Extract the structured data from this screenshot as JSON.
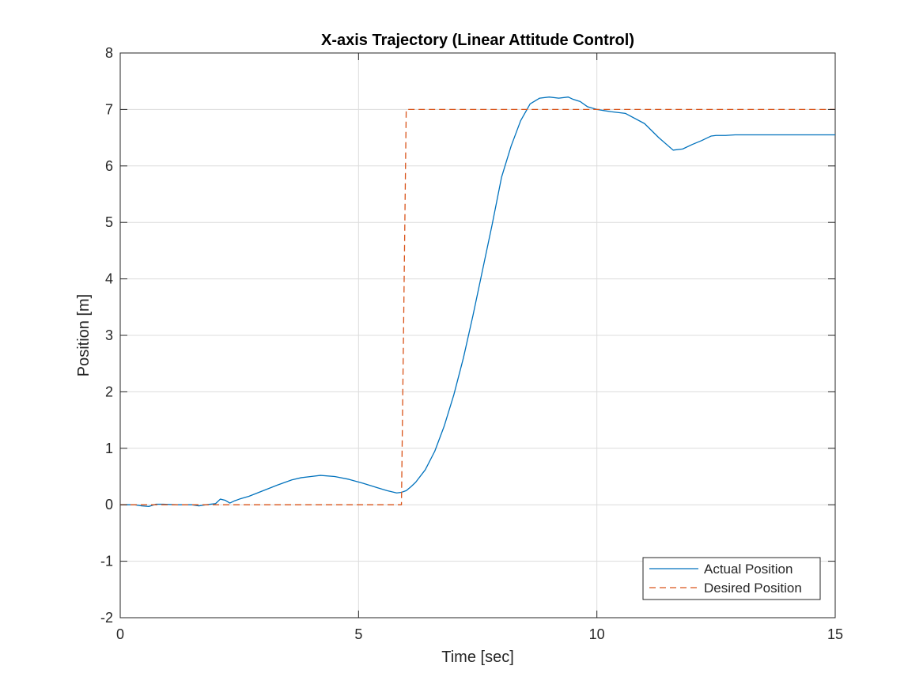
{
  "chart_data": {
    "type": "line",
    "title": "X-axis Trajectory (Linear Attitude Control)",
    "xlabel": "Time [sec]",
    "ylabel": "Position [m]",
    "xlim": [
      0,
      15
    ],
    "ylim": [
      -2,
      8
    ],
    "xticks": [
      0,
      5,
      10,
      15
    ],
    "yticks": [
      -2,
      -1,
      0,
      1,
      2,
      3,
      4,
      5,
      6,
      7,
      8
    ],
    "grid": true,
    "legend_position": "bottom-right",
    "series": [
      {
        "name": "Actual Position",
        "color": "#0072BD",
        "style": "solid",
        "x": [
          0,
          0.3,
          0.45,
          0.6,
          0.75,
          0.9,
          1.2,
          1.5,
          1.65,
          1.8,
          2.0,
          2.1,
          2.2,
          2.3,
          2.4,
          2.5,
          2.7,
          3.0,
          3.3,
          3.6,
          3.8,
          4.0,
          4.2,
          4.5,
          4.8,
          5.1,
          5.4,
          5.6,
          5.8,
          5.9,
          6.0,
          6.1,
          6.2,
          6.4,
          6.6,
          6.8,
          7.0,
          7.2,
          7.4,
          7.6,
          7.8,
          8.0,
          8.2,
          8.4,
          8.6,
          8.8,
          9.0,
          9.2,
          9.4,
          9.5,
          9.65,
          9.8,
          10.0,
          10.3,
          10.6,
          11.0,
          11.3,
          11.6,
          11.8,
          12.0,
          12.2,
          12.4,
          12.5,
          12.7,
          12.9,
          13.1,
          13.3,
          13.5,
          14.0,
          14.5,
          15.0
        ],
        "y": [
          0.0,
          0.0,
          -0.02,
          -0.03,
          0.01,
          0.01,
          0.0,
          0.0,
          -0.02,
          0.0,
          0.02,
          0.1,
          0.08,
          0.03,
          0.07,
          0.1,
          0.15,
          0.25,
          0.35,
          0.44,
          0.48,
          0.5,
          0.52,
          0.5,
          0.45,
          0.38,
          0.3,
          0.25,
          0.21,
          0.22,
          0.25,
          0.32,
          0.4,
          0.62,
          0.95,
          1.4,
          1.95,
          2.6,
          3.35,
          4.15,
          4.95,
          5.8,
          6.35,
          6.8,
          7.1,
          7.2,
          7.22,
          7.2,
          7.22,
          7.18,
          7.14,
          7.05,
          7.0,
          6.96,
          6.93,
          6.75,
          6.5,
          6.28,
          6.3,
          6.38,
          6.45,
          6.53,
          6.54,
          6.54,
          6.55,
          6.55,
          6.55,
          6.55,
          6.55,
          6.55,
          6.55
        ]
      },
      {
        "name": "Desired Position",
        "color": "#D95319",
        "style": "dashed",
        "x": [
          0,
          5.9,
          6.0,
          15
        ],
        "y": [
          0,
          0,
          7,
          7
        ]
      }
    ]
  }
}
